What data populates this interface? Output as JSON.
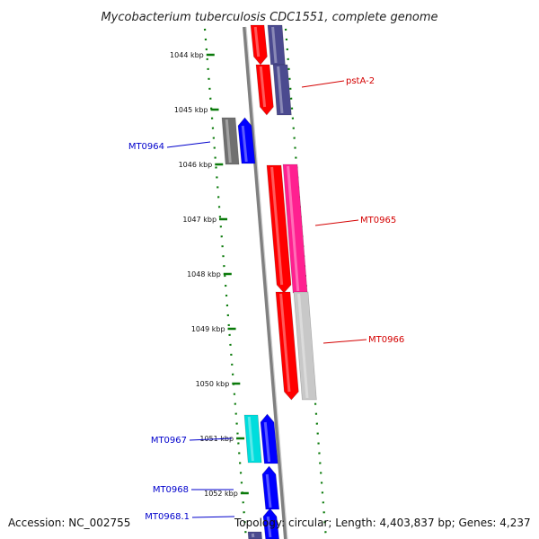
{
  "title": "Mycobacterium tuberculosis CDC1551, complete genome",
  "accession": "Accession: NC_002755",
  "summary": "Topology: circular; Length: 4,403,837 bp; Genes: 4,237",
  "ticks": [
    {
      "kbp": 1044,
      "label": "1044 kbp"
    },
    {
      "kbp": 1045,
      "label": "1045 kbp"
    },
    {
      "kbp": 1046,
      "label": "1046 kbp"
    },
    {
      "kbp": 1047,
      "label": "1047 kbp"
    },
    {
      "kbp": 1048,
      "label": "1048 kbp"
    },
    {
      "kbp": 1049,
      "label": "1049 kbp"
    },
    {
      "kbp": 1050,
      "label": "1050 kbp"
    },
    {
      "kbp": 1051,
      "label": "1051 kbp"
    },
    {
      "kbp": 1052,
      "label": "1052 kbp"
    }
  ],
  "labels": [
    {
      "text": "pstA-2",
      "color": "#d40000"
    },
    {
      "text": "MT0964",
      "color": "#0000cc"
    },
    {
      "text": "MT0965",
      "color": "#d40000"
    },
    {
      "text": "MT0966",
      "color": "#d40000"
    },
    {
      "text": "MT0967",
      "color": "#0000cc"
    },
    {
      "text": "MT0968",
      "color": "#0000cc"
    },
    {
      "text": "MT0968.1",
      "color": "#0000cc"
    }
  ],
  "colors": {
    "backbone": "#808080",
    "tick_dots": "#0a7a0a",
    "red": "#ff0000",
    "blue": "#0000ff",
    "navy": "#4b4a8f",
    "magenta": "#ff2090",
    "gray_dark": "#707070",
    "gray_light": "#c8c8c8",
    "cyan": "#00dddd",
    "label_blue": "#0000cc",
    "label_red": "#d40000"
  }
}
